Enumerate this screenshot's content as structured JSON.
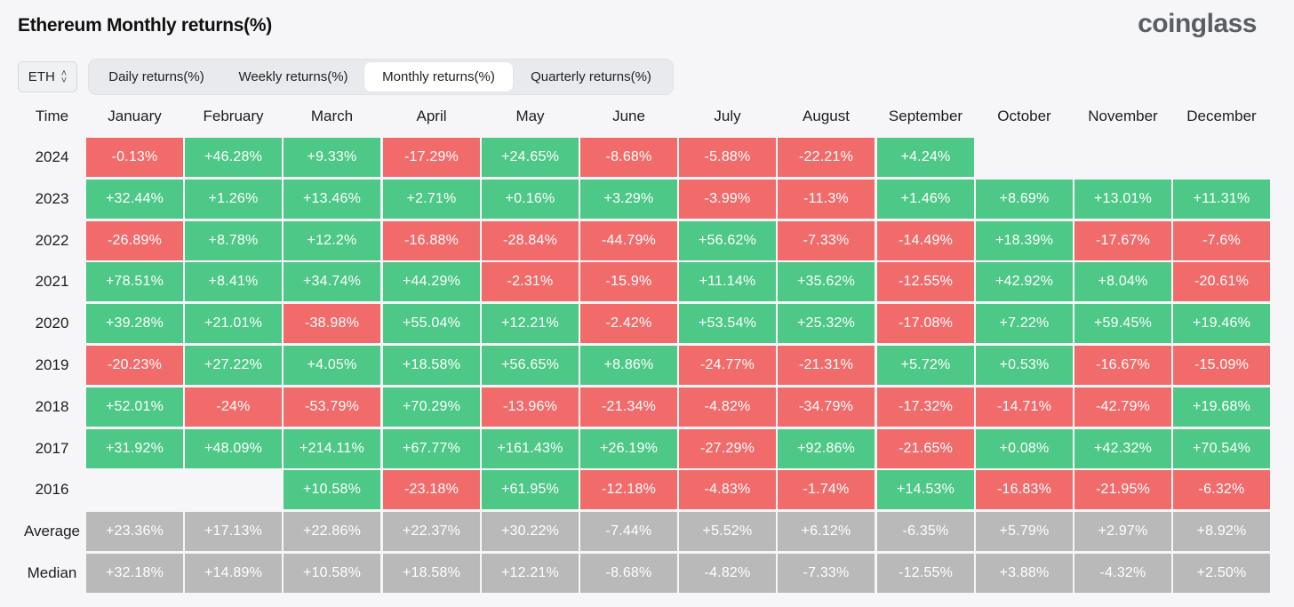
{
  "title": "Ethereum Monthly returns(%)",
  "brand": "coinglass",
  "coin_select": {
    "value": "ETH",
    "icon": "chevron-up-down-icon"
  },
  "tabs": [
    {
      "label": "Daily returns(%)",
      "active": false
    },
    {
      "label": "Weekly returns(%)",
      "active": false
    },
    {
      "label": "Monthly returns(%)",
      "active": true
    },
    {
      "label": "Quarterly returns(%)",
      "active": false
    }
  ],
  "colors": {
    "positive": "#4dc887",
    "negative": "#f26b6b",
    "stat": "#b9b9b9"
  },
  "chart_data": {
    "type": "table",
    "corner_label": "Time",
    "columns": [
      "January",
      "February",
      "March",
      "April",
      "May",
      "June",
      "July",
      "August",
      "September",
      "October",
      "November",
      "December"
    ],
    "rows": [
      {
        "label": "2024",
        "kind": "year",
        "values": [
          "-0.13%",
          "+46.28%",
          "+9.33%",
          "-17.29%",
          "+24.65%",
          "-8.68%",
          "-5.88%",
          "-22.21%",
          "+4.24%",
          null,
          null,
          null
        ]
      },
      {
        "label": "2023",
        "kind": "year",
        "values": [
          "+32.44%",
          "+1.26%",
          "+13.46%",
          "+2.71%",
          "+0.16%",
          "+3.29%",
          "-3.99%",
          "-11.3%",
          "+1.46%",
          "+8.69%",
          "+13.01%",
          "+11.31%"
        ]
      },
      {
        "label": "2022",
        "kind": "year",
        "values": [
          "-26.89%",
          "+8.78%",
          "+12.2%",
          "-16.88%",
          "-28.84%",
          "-44.79%",
          "+56.62%",
          "-7.33%",
          "-14.49%",
          "+18.39%",
          "-17.67%",
          "-7.6%"
        ]
      },
      {
        "label": "2021",
        "kind": "year",
        "values": [
          "+78.51%",
          "+8.41%",
          "+34.74%",
          "+44.29%",
          "-2.31%",
          "-15.9%",
          "+11.14%",
          "+35.62%",
          "-12.55%",
          "+42.92%",
          "+8.04%",
          "-20.61%"
        ]
      },
      {
        "label": "2020",
        "kind": "year",
        "values": [
          "+39.28%",
          "+21.01%",
          "-38.98%",
          "+55.04%",
          "+12.21%",
          "-2.42%",
          "+53.54%",
          "+25.32%",
          "-17.08%",
          "+7.22%",
          "+59.45%",
          "+19.46%"
        ]
      },
      {
        "label": "2019",
        "kind": "year",
        "values": [
          "-20.23%",
          "+27.22%",
          "+4.05%",
          "+18.58%",
          "+56.65%",
          "+8.86%",
          "-24.77%",
          "-21.31%",
          "+5.72%",
          "+0.53%",
          "-16.67%",
          "-15.09%"
        ]
      },
      {
        "label": "2018",
        "kind": "year",
        "values": [
          "+52.01%",
          "-24%",
          "-53.79%",
          "+70.29%",
          "-13.96%",
          "-21.34%",
          "-4.82%",
          "-34.79%",
          "-17.32%",
          "-14.71%",
          "-42.79%",
          "+19.68%"
        ]
      },
      {
        "label": "2017",
        "kind": "year",
        "values": [
          "+31.92%",
          "+48.09%",
          "+214.11%",
          "+67.77%",
          "+161.43%",
          "+26.19%",
          "-27.29%",
          "+92.86%",
          "-21.65%",
          "+0.08%",
          "+42.32%",
          "+70.54%"
        ]
      },
      {
        "label": "2016",
        "kind": "year",
        "values": [
          null,
          null,
          "+10.58%",
          "-23.18%",
          "+61.95%",
          "-12.18%",
          "-4.83%",
          "-1.74%",
          "+14.53%",
          "-16.83%",
          "-21.95%",
          "-6.32%"
        ]
      },
      {
        "label": "Average",
        "kind": "stat",
        "values": [
          "+23.36%",
          "+17.13%",
          "+22.86%",
          "+22.37%",
          "+30.22%",
          "-7.44%",
          "+5.52%",
          "+6.12%",
          "-6.35%",
          "+5.79%",
          "+2.97%",
          "+8.92%"
        ]
      },
      {
        "label": "Median",
        "kind": "stat",
        "values": [
          "+32.18%",
          "+14.89%",
          "+10.58%",
          "+18.58%",
          "+12.21%",
          "-8.68%",
          "-4.82%",
          "-7.33%",
          "-12.55%",
          "+3.88%",
          "-4.32%",
          "+2.50%"
        ]
      }
    ]
  }
}
